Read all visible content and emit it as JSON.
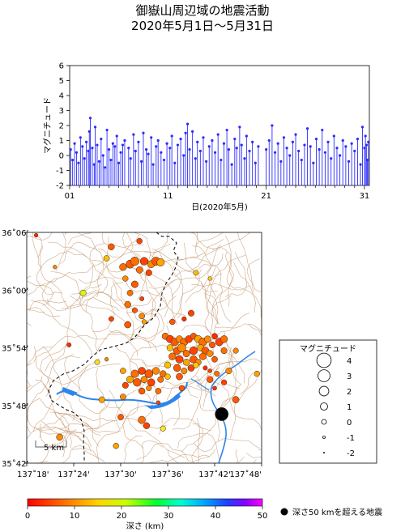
{
  "title_line1": "御嶽山周辺域の地震活動",
  "title_line2": "2020年5月1日〜5月31日",
  "colors": {
    "stem": "#2b2bff",
    "lake": "#1f74e6",
    "contour": "#c79a73",
    "boundary": "#000000"
  },
  "chart_data": [
    {
      "type": "scatter",
      "subtype": "magnitude-time stem plot",
      "xlabel": "日(2020年5月)",
      "ylabel": "マグニチュード",
      "xlim": [
        1,
        31.5
      ],
      "ylim": [
        -2,
        6
      ],
      "x_ticks": [
        {
          "value": 1,
          "label": "01"
        },
        {
          "value": 11,
          "label": "11"
        },
        {
          "value": 21,
          "label": "21"
        },
        {
          "value": 31,
          "label": "31"
        }
      ],
      "y_ticks": [
        "-2",
        "-1",
        "0",
        "1",
        "2",
        "3",
        "4",
        "5",
        "6"
      ],
      "points": [
        [
          1.1,
          0.4
        ],
        [
          1.3,
          -0.3
        ],
        [
          1.5,
          0.8
        ],
        [
          1.7,
          0.2
        ],
        [
          1.9,
          -0.5
        ],
        [
          2.1,
          1.2
        ],
        [
          2.3,
          0.6
        ],
        [
          2.5,
          -0.2
        ],
        [
          2.7,
          0.9
        ],
        [
          2.9,
          0.3
        ],
        [
          3.0,
          1.6
        ],
        [
          3.1,
          2.5
        ],
        [
          3.3,
          0.5
        ],
        [
          3.5,
          -0.6
        ],
        [
          3.6,
          1.9
        ],
        [
          3.8,
          0.7
        ],
        [
          4.0,
          -0.4
        ],
        [
          4.2,
          1.1
        ],
        [
          4.4,
          0.0
        ],
        [
          4.6,
          -0.8
        ],
        [
          4.8,
          1.7
        ],
        [
          5.0,
          0.4
        ],
        [
          5.2,
          -0.3
        ],
        [
          5.4,
          0.8
        ],
        [
          5.6,
          0.6
        ],
        [
          5.8,
          1.3
        ],
        [
          6.0,
          -0.5
        ],
        [
          6.2,
          0.2
        ],
        [
          6.4,
          0.7
        ],
        [
          6.6,
          1.0
        ],
        [
          7.0,
          0.5
        ],
        [
          7.2,
          -0.2
        ],
        [
          7.5,
          1.4
        ],
        [
          7.7,
          0.3
        ],
        [
          8.0,
          0.9
        ],
        [
          8.3,
          -0.4
        ],
        [
          8.5,
          1.5
        ],
        [
          8.8,
          0.4
        ],
        [
          9.0,
          0.1
        ],
        [
          9.3,
          1.2
        ],
        [
          9.5,
          -0.6
        ],
        [
          9.8,
          0.6
        ],
        [
          10.0,
          1.0
        ],
        [
          10.3,
          0.2
        ],
        [
          10.6,
          -0.3
        ],
        [
          10.9,
          0.8
        ],
        [
          11.2,
          0.5
        ],
        [
          11.4,
          1.3
        ],
        [
          11.7,
          -0.5
        ],
        [
          12.0,
          0.7
        ],
        [
          12.3,
          1.1
        ],
        [
          12.6,
          0.0
        ],
        [
          12.8,
          1.5
        ],
        [
          13.0,
          2.1
        ],
        [
          13.2,
          0.4
        ],
        [
          13.5,
          1.6
        ],
        [
          13.8,
          -0.2
        ],
        [
          14.0,
          0.9
        ],
        [
          14.3,
          0.3
        ],
        [
          14.6,
          1.2
        ],
        [
          14.9,
          -0.4
        ],
        [
          15.2,
          0.6
        ],
        [
          15.5,
          1.0
        ],
        [
          15.8,
          0.2
        ],
        [
          16.1,
          1.4
        ],
        [
          16.4,
          -0.3
        ],
        [
          16.7,
          0.8
        ],
        [
          17.0,
          1.7
        ],
        [
          17.2,
          0.4
        ],
        [
          17.5,
          -0.6
        ],
        [
          17.8,
          1.1
        ],
        [
          18.0,
          0.5
        ],
        [
          18.3,
          1.9
        ],
        [
          18.5,
          0.7
        ],
        [
          18.8,
          -0.2
        ],
        [
          19.0,
          1.3
        ],
        [
          19.3,
          0.3
        ],
        [
          19.6,
          0.9
        ],
        [
          19.9,
          -0.5
        ],
        [
          20.2,
          0.6
        ],
        [
          21.0,
          0.4
        ],
        [
          21.3,
          1.0
        ],
        [
          21.6,
          2.0
        ],
        [
          21.9,
          0.2
        ],
        [
          22.2,
          0.8
        ],
        [
          22.5,
          -0.4
        ],
        [
          22.8,
          1.2
        ],
        [
          23.1,
          0.5
        ],
        [
          23.4,
          0.0
        ],
        [
          23.7,
          0.9
        ],
        [
          24.0,
          1.4
        ],
        [
          24.3,
          0.3
        ],
        [
          24.6,
          -0.3
        ],
        [
          24.9,
          0.7
        ],
        [
          25.2,
          1.8
        ],
        [
          25.5,
          0.6
        ],
        [
          25.8,
          -0.5
        ],
        [
          26.1,
          1.1
        ],
        [
          26.4,
          0.4
        ],
        [
          26.7,
          1.7
        ],
        [
          27.0,
          0.2
        ],
        [
          27.3,
          0.9
        ],
        [
          27.6,
          -0.2
        ],
        [
          27.9,
          1.3
        ],
        [
          28.2,
          0.5
        ],
        [
          28.5,
          0.0
        ],
        [
          28.8,
          1.0
        ],
        [
          29.1,
          0.6
        ],
        [
          29.4,
          -0.4
        ],
        [
          29.7,
          0.8
        ],
        [
          30.0,
          0.3
        ],
        [
          30.3,
          1.1
        ],
        [
          30.6,
          -0.6
        ],
        [
          30.8,
          1.9
        ],
        [
          31.0,
          0.5
        ],
        [
          31.1,
          1.3
        ],
        [
          31.2,
          0.7
        ],
        [
          31.3,
          -0.3
        ],
        [
          31.4,
          0.9
        ]
      ]
    },
    {
      "type": "scatter",
      "subtype": "epicenter map",
      "lon_ticks": [
        "137˚18'",
        "137˚24'",
        "137˚30'",
        "137˚36'",
        "137˚42'",
        "137˚48'"
      ],
      "lat_ticks": [
        "36˚06'",
        "36˚00'",
        "35˚54'",
        "35˚48'",
        "35˚42'"
      ],
      "xlim": [
        137.3,
        137.8
      ],
      "ylim": [
        35.7,
        36.1
      ],
      "scale_bar_label": "5 km",
      "events": [
        [
          137.32,
          36.095,
          -0.5,
          2
        ],
        [
          137.48,
          36.075,
          0.5,
          4
        ],
        [
          137.54,
          36.085,
          0.2,
          3
        ],
        [
          137.36,
          36.04,
          -0.5,
          6
        ],
        [
          137.47,
          36.055,
          0.3,
          8
        ],
        [
          137.505,
          36.04,
          0.8,
          5
        ],
        [
          137.52,
          36.045,
          1.2,
          4
        ],
        [
          137.53,
          36.05,
          1.4,
          5
        ],
        [
          137.55,
          36.05,
          1.1,
          3
        ],
        [
          137.565,
          36.045,
          0.9,
          6
        ],
        [
          137.575,
          36.05,
          1.3,
          4
        ],
        [
          137.585,
          36.048,
          1.0,
          7
        ],
        [
          137.54,
          36.035,
          0.6,
          5
        ],
        [
          137.56,
          36.03,
          0.4,
          3
        ],
        [
          137.51,
          36.02,
          0.2,
          6
        ],
        [
          137.53,
          36.01,
          0.7,
          4
        ],
        [
          137.52,
          35.995,
          0.3,
          5
        ],
        [
          137.545,
          35.985,
          -0.3,
          3
        ],
        [
          137.515,
          35.975,
          0.5,
          5
        ],
        [
          137.53,
          35.965,
          0.1,
          4
        ],
        [
          137.545,
          35.955,
          0.3,
          6
        ],
        [
          137.55,
          35.945,
          -0.2,
          7
        ],
        [
          137.515,
          35.94,
          0.6,
          4
        ],
        [
          137.48,
          35.95,
          0.0,
          3
        ],
        [
          137.42,
          35.995,
          0.4,
          15
        ],
        [
          137.66,
          36.03,
          0.0,
          8
        ],
        [
          137.69,
          36.02,
          -0.5,
          9
        ],
        [
          137.635,
          35.95,
          -0.2,
          2
        ],
        [
          137.65,
          35.96,
          0.4,
          3
        ],
        [
          137.61,
          35.945,
          0.2,
          4
        ],
        [
          137.595,
          35.92,
          0.6,
          5
        ],
        [
          137.605,
          35.915,
          0.9,
          3
        ],
        [
          137.615,
          35.91,
          1.1,
          4
        ],
        [
          137.625,
          35.915,
          0.7,
          6
        ],
        [
          137.635,
          35.91,
          1.0,
          5
        ],
        [
          137.645,
          35.915,
          0.8,
          3
        ],
        [
          137.655,
          35.92,
          0.5,
          4
        ],
        [
          137.665,
          35.915,
          0.9,
          7
        ],
        [
          137.675,
          35.91,
          1.2,
          5
        ],
        [
          137.685,
          35.915,
          0.6,
          6
        ],
        [
          137.695,
          35.905,
          0.4,
          4
        ],
        [
          137.71,
          35.91,
          1.0,
          3
        ],
        [
          137.72,
          35.915,
          0.8,
          5
        ],
        [
          137.7,
          35.92,
          0.3,
          2
        ],
        [
          137.605,
          35.9,
          0.5,
          8
        ],
        [
          137.62,
          35.895,
          0.9,
          4
        ],
        [
          137.63,
          35.9,
          1.3,
          6
        ],
        [
          137.64,
          35.89,
          0.7,
          5
        ],
        [
          137.655,
          35.895,
          1.1,
          3
        ],
        [
          137.67,
          35.9,
          0.6,
          7
        ],
        [
          137.68,
          35.895,
          0.9,
          4
        ],
        [
          137.69,
          35.89,
          0.5,
          6
        ],
        [
          137.61,
          35.885,
          0.8,
          5
        ],
        [
          137.625,
          35.88,
          1.0,
          3
        ],
        [
          137.64,
          35.875,
          0.6,
          7
        ],
        [
          137.655,
          35.88,
          0.9,
          4
        ],
        [
          137.665,
          35.875,
          0.4,
          6
        ],
        [
          137.675,
          35.885,
          0.7,
          5
        ],
        [
          137.6,
          35.87,
          0.5,
          8
        ],
        [
          137.62,
          35.865,
          0.8,
          4
        ],
        [
          137.635,
          35.86,
          0.4,
          6
        ],
        [
          137.65,
          35.865,
          0.6,
          3
        ],
        [
          137.7,
          35.88,
          0.3,
          4
        ],
        [
          137.72,
          35.895,
          0.4,
          5
        ],
        [
          137.745,
          35.895,
          0.1,
          6
        ],
        [
          137.66,
          35.87,
          0.2,
          9
        ],
        [
          137.68,
          35.865,
          -0.3,
          2
        ],
        [
          137.47,
          35.88,
          -0.5,
          6
        ],
        [
          137.45,
          35.875,
          0.0,
          11
        ],
        [
          137.39,
          35.905,
          -0.3,
          2
        ],
        [
          137.505,
          35.86,
          0.3,
          7
        ],
        [
          137.53,
          35.855,
          1.0,
          5
        ],
        [
          137.545,
          35.86,
          0.9,
          3
        ],
        [
          137.56,
          35.855,
          1.2,
          4
        ],
        [
          137.575,
          35.86,
          0.8,
          6
        ],
        [
          137.59,
          35.855,
          0.5,
          5
        ],
        [
          137.52,
          35.845,
          0.8,
          7
        ],
        [
          137.535,
          35.84,
          1.1,
          4
        ],
        [
          137.55,
          35.845,
          0.6,
          6
        ],
        [
          137.565,
          35.84,
          0.9,
          3
        ],
        [
          137.585,
          35.845,
          0.4,
          5
        ],
        [
          137.6,
          35.85,
          0.2,
          8
        ],
        [
          137.545,
          35.825,
          0.5,
          4
        ],
        [
          137.56,
          35.83,
          0.1,
          6
        ],
        [
          137.58,
          35.825,
          0.3,
          5
        ],
        [
          137.51,
          35.835,
          0.4,
          3
        ],
        [
          137.625,
          35.85,
          0.6,
          4
        ],
        [
          137.69,
          35.86,
          -0.4,
          3
        ],
        [
          137.705,
          35.855,
          0.0,
          5
        ],
        [
          137.69,
          35.845,
          0.5,
          4
        ],
        [
          137.73,
          35.86,
          0.4,
          6
        ],
        [
          137.79,
          35.855,
          0.2,
          7
        ],
        [
          137.72,
          35.84,
          0.1,
          3
        ],
        [
          137.745,
          35.81,
          0.6,
          4
        ],
        [
          137.7,
          35.83,
          -0.4,
          2
        ],
        [
          137.63,
          35.83,
          0.2,
          4
        ],
        [
          137.505,
          35.815,
          0.3,
          6
        ],
        [
          137.58,
          35.805,
          -0.5,
          3
        ],
        [
          137.46,
          35.81,
          0.4,
          7
        ],
        [
          137.5,
          35.78,
          0.3,
          4
        ],
        [
          137.545,
          35.775,
          0.9,
          5
        ],
        [
          137.555,
          35.765,
          0.5,
          3
        ],
        [
          137.59,
          35.76,
          0.1,
          12
        ],
        [
          137.49,
          35.73,
          0.2,
          7
        ],
        [
          137.37,
          35.745,
          0.5,
          6
        ]
      ],
      "deep_events": [
        [
          137.715,
          35.785,
          3.3
        ]
      ],
      "scale_legend": {
        "title": "マグニチュード",
        "magnitudes": [
          4,
          3,
          2,
          1,
          0,
          -1,
          -2
        ],
        "labels": [
          "4",
          "3",
          "2",
          "1",
          "0",
          "-1",
          "-2"
        ]
      },
      "depth_scale": {
        "label": "深さ (km)",
        "ticks": [
          "0",
          "10",
          "20",
          "30",
          "40",
          "50"
        ],
        "range": [
          0,
          50
        ]
      },
      "deep_note": "深さ50 kmを超える地震"
    }
  ]
}
